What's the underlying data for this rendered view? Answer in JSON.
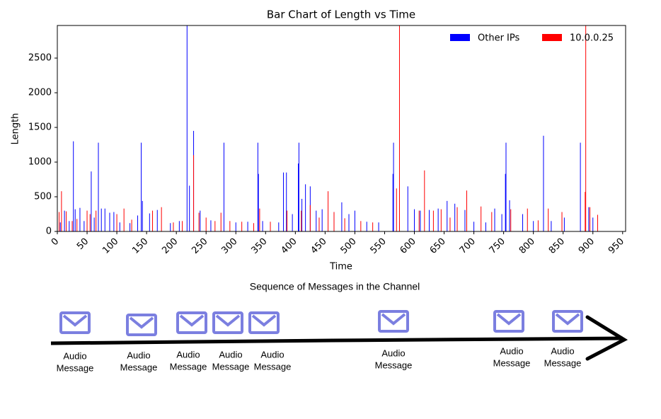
{
  "chart_data": {
    "type": "bar",
    "title": "Bar Chart of Length vs Time",
    "x_label": "Time",
    "y_label": "Length",
    "xlim": [
      0,
      955
    ],
    "ylim": [
      0,
      2970
    ],
    "xticks": [
      0,
      50,
      100,
      150,
      200,
      250,
      300,
      350,
      400,
      450,
      500,
      550,
      600,
      650,
      700,
      750,
      800,
      850,
      900,
      950
    ],
    "yticks": [
      0,
      500,
      1000,
      1500,
      2000,
      2500
    ],
    "legend": "upper right",
    "series": [
      {
        "name": "Other IPs",
        "color": "#0000ff",
        "x": [
          5,
          12,
          20,
          27,
          30,
          38,
          45,
          57,
          62,
          69,
          74,
          80,
          88,
          95,
          105,
          122,
          135,
          141,
          143,
          155,
          168,
          190,
          205,
          218,
          222,
          229,
          240,
          258,
          280,
          300,
          320,
          337,
          338,
          345,
          372,
          380,
          385,
          395,
          405,
          406,
          411,
          417,
          425,
          435,
          445,
          465,
          478,
          490,
          500,
          520,
          540,
          564,
          565,
          575,
          589,
          600,
          610,
          625,
          640,
          655,
          668,
          685,
          700,
          720,
          735,
          747,
          753,
          754,
          760,
          782,
          800,
          817,
          830,
          852,
          879,
          893,
          900
        ],
        "values": [
          130,
          300,
          150,
          1300,
          320,
          340,
          150,
          865,
          200,
          1280,
          330,
          330,
          270,
          280,
          130,
          120,
          230,
          1280,
          440,
          260,
          310,
          120,
          150,
          3000,
          660,
          1450,
          300,
          160,
          1280,
          130,
          140,
          1280,
          830,
          150,
          130,
          850,
          850,
          250,
          980,
          1280,
          470,
          680,
          650,
          300,
          320,
          280,
          420,
          250,
          300,
          140,
          130,
          830,
          1280,
          140,
          650,
          320,
          300,
          310,
          330,
          440,
          400,
          310,
          140,
          130,
          330,
          250,
          830,
          1280,
          450,
          250,
          150,
          1380,
          150,
          200,
          1280,
          350,
          200
        ]
      },
      {
        "name": "10.0.0.25",
        "color": "#ff0000",
        "x": [
          3,
          7,
          15,
          25,
          33,
          50,
          55,
          65,
          100,
          112,
          125,
          160,
          175,
          195,
          210,
          229,
          238,
          250,
          265,
          275,
          290,
          310,
          330,
          340,
          358,
          386,
          410,
          425,
          440,
          455,
          465,
          483,
          510,
          530,
          570,
          575,
          608,
          617,
          632,
          645,
          660,
          672,
          688,
          712,
          730,
          762,
          790,
          808,
          825,
          848,
          887,
          888,
          895,
          908
        ],
        "values": [
          280,
          580,
          290,
          150,
          180,
          300,
          250,
          300,
          250,
          330,
          170,
          300,
          350,
          130,
          150,
          1100,
          270,
          200,
          150,
          270,
          150,
          140,
          120,
          330,
          140,
          300,
          300,
          380,
          200,
          580,
          280,
          190,
          150,
          130,
          620,
          3000,
          300,
          880,
          300,
          320,
          200,
          350,
          590,
          360,
          280,
          320,
          330,
          160,
          330,
          280,
          570,
          3000,
          350,
          240
        ]
      }
    ]
  },
  "diagram": {
    "title": "Sequence of Messages in the Channel",
    "messages": [
      {
        "lines": [
          "Audio",
          "Message"
        ]
      },
      {
        "lines": [
          "Audio",
          "Message"
        ]
      },
      {
        "lines": [
          "Audio",
          "Message"
        ]
      },
      {
        "lines": [
          "Audio",
          "Message"
        ]
      },
      {
        "lines": [
          "Audio",
          "Message"
        ]
      },
      {
        "lines": [
          "Audio",
          "Message"
        ]
      },
      {
        "lines": [
          "Audio",
          "Message"
        ]
      },
      {
        "lines": [
          "Audio",
          "Message"
        ]
      }
    ]
  }
}
